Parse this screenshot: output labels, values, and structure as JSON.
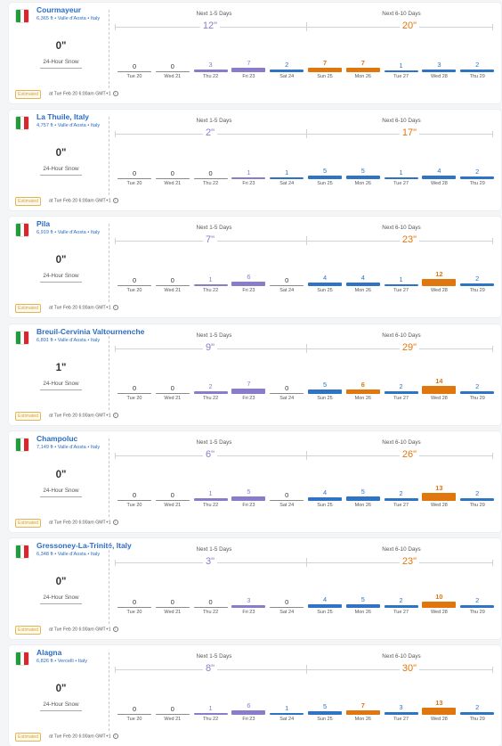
{
  "colors": {
    "link": "#2b6cc4",
    "purple": "#8a7cc9",
    "blue": "#2f73c4",
    "orange": "#e0760e",
    "gray": "#8a8a8a"
  },
  "icons": {
    "flag": "italy-flag-icon",
    "info": "info-circle-icon"
  },
  "labels": {
    "next_1_5": "Next 1-5 Days",
    "next_6_10": "Next 6-10 Days",
    "snow_24h": "24-Hour Snow",
    "estimated": "Estimated",
    "timestamp": "at Tue Feb 20 6:00am GMT+1",
    "info": "i"
  },
  "days": [
    "Tue 20",
    "Wed 21",
    "Thu 22",
    "Fri 23",
    "Sat 24",
    "Sun 25",
    "Mon 26",
    "Tue 27",
    "Wed 28",
    "Thu 29"
  ],
  "resorts": [
    {
      "name": "Courmayeur",
      "sub": "6,365 ft • Valle d'Aosta • Italy",
      "snow_24h": "0\"",
      "total_1_5": "12\"",
      "total_6_10": "20\"",
      "values": [
        0,
        0,
        3,
        7,
        2,
        7,
        7,
        1,
        3,
        2
      ]
    },
    {
      "name": "La Thuile, Italy",
      "sub": "4,757 ft • Valle d'Aosta • Italy",
      "snow_24h": "0\"",
      "total_1_5": "2\"",
      "total_6_10": "17\"",
      "values": [
        0,
        0,
        0,
        1,
        1,
        5,
        5,
        1,
        4,
        2
      ]
    },
    {
      "name": "Pila",
      "sub": "6,919 ft • Valle d'Aosta • Italy",
      "snow_24h": "0\"",
      "total_1_5": "7\"",
      "total_6_10": "23\"",
      "values": [
        0,
        0,
        1,
        6,
        0,
        4,
        4,
        1,
        12,
        2
      ]
    },
    {
      "name": "Breuil-Cervinia Valtournenche",
      "sub": "6,891 ft • Valle d'Aosta • Italy",
      "snow_24h": "1\"",
      "total_1_5": "9\"",
      "total_6_10": "29\"",
      "values": [
        0,
        0,
        2,
        7,
        0,
        5,
        6,
        2,
        14,
        2
      ]
    },
    {
      "name": "Champoluc",
      "sub": "7,149 ft • Valle d'Aosta • Italy",
      "snow_24h": "0\"",
      "total_1_5": "6\"",
      "total_6_10": "26\"",
      "values": [
        0,
        0,
        1,
        5,
        0,
        4,
        5,
        2,
        13,
        2
      ]
    },
    {
      "name": "Gressoney-La-Trinité, Italy",
      "sub": "6,348 ft • Valle d'Aosta • Italy",
      "snow_24h": "0\"",
      "total_1_5": "3\"",
      "total_6_10": "23\"",
      "values": [
        0,
        0,
        0,
        3,
        0,
        4,
        5,
        2,
        10,
        2
      ]
    },
    {
      "name": "Alagna",
      "sub": "6,826 ft • Vercelli • Italy",
      "snow_24h": "0\"",
      "total_1_5": "8\"",
      "total_6_10": "30\"",
      "values": [
        0,
        0,
        1,
        6,
        1,
        5,
        7,
        3,
        13,
        2
      ]
    }
  ]
}
